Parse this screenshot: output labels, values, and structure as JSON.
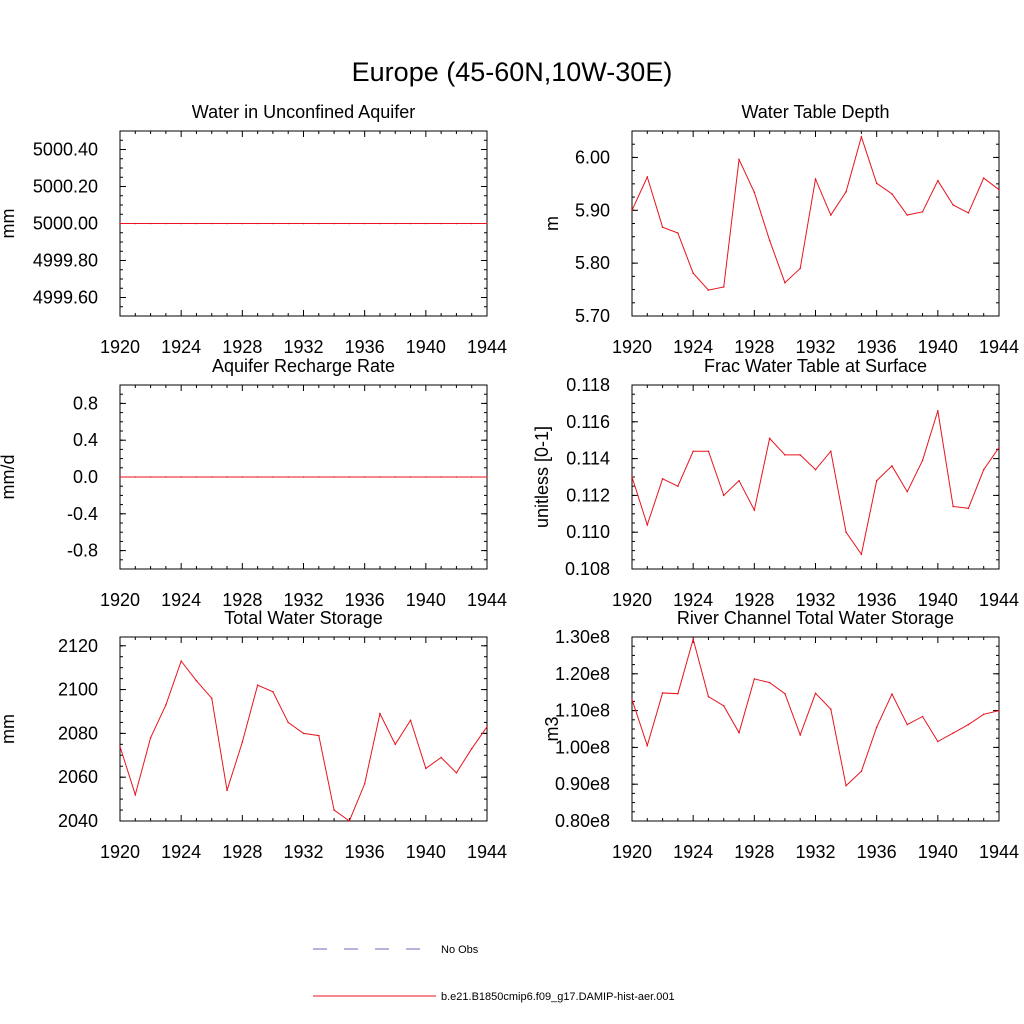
{
  "title": "Europe (45-60N,10W-30E)",
  "legend": {
    "entries": [
      {
        "label": "No Obs",
        "style": "dashed",
        "color": "#6b6bb8"
      },
      {
        "label": "b.e21.B1850cmip6.f09_g17.DAMIP-hist-aer.001",
        "style": "solid",
        "color": "#e8141e"
      }
    ]
  },
  "chart_data": [
    {
      "type": "line",
      "title": "Water in Unconfined Aquifer",
      "xlabel": "",
      "ylabel": "mm",
      "xlim": [
        1920,
        1944
      ],
      "ylim": [
        4999.5,
        5000.5
      ],
      "x_ticks": [
        "1920",
        "1924",
        "1928",
        "1932",
        "1936",
        "1940",
        "1944"
      ],
      "y_ticks": [
        4999.6,
        4999.8,
        5000.0,
        5000.2,
        5000.4
      ],
      "y_tick_labels": [
        "4999.60",
        "4999.80",
        "5000.00",
        "5000.20",
        "5000.40"
      ],
      "series": [
        {
          "color": "#e8141e",
          "x": [
            1920,
            1921,
            1922,
            1923,
            1924,
            1925,
            1926,
            1927,
            1928,
            1929,
            1930,
            1931,
            1932,
            1933,
            1934,
            1935,
            1936,
            1937,
            1938,
            1939,
            1940,
            1941,
            1942,
            1943,
            1944
          ],
          "values": [
            5000,
            5000,
            5000,
            5000,
            5000,
            5000,
            5000,
            5000,
            5000,
            5000,
            5000,
            5000,
            5000,
            5000,
            5000,
            5000,
            5000,
            5000,
            5000,
            5000,
            5000,
            5000,
            5000,
            5000,
            5000
          ]
        }
      ]
    },
    {
      "type": "line",
      "title": "Water Table Depth",
      "xlabel": "",
      "ylabel": "m",
      "xlim": [
        1920,
        1944
      ],
      "ylim": [
        5.7,
        6.05
      ],
      "x_ticks": [
        "1920",
        "1924",
        "1928",
        "1932",
        "1936",
        "1940",
        "1944"
      ],
      "y_ticks": [
        5.7,
        5.8,
        5.9,
        6.0
      ],
      "y_tick_labels": [
        "5.70",
        "5.80",
        "5.90",
        "6.00"
      ],
      "series": [
        {
          "color": "#e8141e",
          "x": [
            1920,
            1921,
            1922,
            1923,
            1924,
            1925,
            1926,
            1927,
            1928,
            1929,
            1930,
            1931,
            1932,
            1933,
            1934,
            1935,
            1936,
            1937,
            1938,
            1939,
            1940,
            1941,
            1942,
            1943,
            1944
          ],
          "values": [
            5.9,
            5.963,
            5.868,
            5.857,
            5.781,
            5.749,
            5.755,
            5.996,
            5.934,
            5.843,
            5.763,
            5.79,
            5.959,
            5.891,
            5.935,
            6.039,
            5.951,
            5.931,
            5.891,
            5.897,
            5.956,
            5.91,
            5.895,
            5.961,
            5.939
          ]
        }
      ]
    },
    {
      "type": "line",
      "title": "Aquifer Recharge Rate",
      "xlabel": "",
      "ylabel": "mm/d",
      "xlim": [
        1920,
        1944
      ],
      "ylim": [
        -1.0,
        1.0
      ],
      "x_ticks": [
        "1920",
        "1924",
        "1928",
        "1932",
        "1936",
        "1940",
        "1944"
      ],
      "y_ticks": [
        -0.8,
        -0.4,
        0.0,
        0.4,
        0.8
      ],
      "y_tick_labels": [
        "-0.8",
        "-0.4",
        "0.0",
        "0.4",
        "0.8"
      ],
      "series": [
        {
          "color": "#e8141e",
          "x": [
            1920,
            1921,
            1922,
            1923,
            1924,
            1925,
            1926,
            1927,
            1928,
            1929,
            1930,
            1931,
            1932,
            1933,
            1934,
            1935,
            1936,
            1937,
            1938,
            1939,
            1940,
            1941,
            1942,
            1943,
            1944
          ],
          "values": [
            0,
            0,
            0,
            0,
            0,
            0,
            0,
            0,
            0,
            0,
            0,
            0,
            0,
            0,
            0,
            0,
            0,
            0,
            0,
            0,
            0,
            0,
            0,
            0,
            0
          ]
        }
      ]
    },
    {
      "type": "line",
      "title": "Frac Water Table at Surface",
      "xlabel": "",
      "ylabel": "unitless [0-1]",
      "xlim": [
        1920,
        1944
      ],
      "ylim": [
        0.108,
        0.118
      ],
      "x_ticks": [
        "1920",
        "1924",
        "1928",
        "1932",
        "1936",
        "1940",
        "1944"
      ],
      "y_ticks": [
        0.108,
        0.11,
        0.112,
        0.114,
        0.116,
        0.118
      ],
      "y_tick_labels": [
        "0.108",
        "0.110",
        "0.112",
        "0.114",
        "0.116",
        "0.118"
      ],
      "series": [
        {
          "color": "#e8141e",
          "x": [
            1920,
            1921,
            1922,
            1923,
            1924,
            1925,
            1926,
            1927,
            1928,
            1929,
            1930,
            1931,
            1932,
            1933,
            1934,
            1935,
            1936,
            1937,
            1938,
            1939,
            1940,
            1941,
            1942,
            1943,
            1944
          ],
          "values": [
            0.113,
            0.1104,
            0.1129,
            0.1125,
            0.1144,
            0.1144,
            0.112,
            0.1128,
            0.1112,
            0.1151,
            0.1142,
            0.1142,
            0.1134,
            0.1144,
            0.11,
            0.1088,
            0.1128,
            0.1136,
            0.1122,
            0.1139,
            0.1166,
            0.1114,
            0.1113,
            0.1134,
            0.1146
          ]
        }
      ]
    },
    {
      "type": "line",
      "title": "Total Water Storage",
      "xlabel": "",
      "ylabel": "mm",
      "xlim": [
        1920,
        1944
      ],
      "ylim": [
        2040,
        2124
      ],
      "x_ticks": [
        "1920",
        "1924",
        "1928",
        "1932",
        "1936",
        "1940",
        "1944"
      ],
      "y_ticks": [
        2040,
        2060,
        2080,
        2100,
        2120
      ],
      "y_tick_labels": [
        "2040",
        "2060",
        "2080",
        "2100",
        "2120"
      ],
      "series": [
        {
          "color": "#e8141e",
          "x": [
            1920,
            1921,
            1922,
            1923,
            1924,
            1925,
            1926,
            1927,
            1928,
            1929,
            1930,
            1931,
            1932,
            1933,
            1934,
            1935,
            1936,
            1937,
            1938,
            1939,
            1940,
            1941,
            1942,
            1943,
            1944
          ],
          "values": [
            2074,
            2052,
            2078,
            2093,
            2113,
            2104,
            2096,
            2054,
            2076,
            2102,
            2099,
            2085,
            2080,
            2079,
            2045,
            2040,
            2057,
            2089,
            2075,
            2086,
            2064,
            2069,
            2062,
            2073,
            2083
          ]
        }
      ]
    },
    {
      "type": "line",
      "title": "River Channel Total Water Storage",
      "xlabel": "",
      "ylabel": "m3",
      "xlim": [
        1920,
        1944
      ],
      "ylim": [
        80000000.0,
        130000000.0
      ],
      "x_ticks": [
        "1920",
        "1924",
        "1928",
        "1932",
        "1936",
        "1940",
        "1944"
      ],
      "y_ticks": [
        80000000.0,
        90000000.0,
        100000000.0,
        110000000.0,
        120000000.0,
        130000000.0
      ],
      "y_tick_labels": [
        "0.80e8",
        "0.90e8",
        "1.00e8",
        "1.10e8",
        "1.20e8",
        "1.30e8"
      ],
      "series": [
        {
          "color": "#e8141e",
          "x": [
            1920,
            1921,
            1922,
            1923,
            1924,
            1925,
            1926,
            1927,
            1928,
            1929,
            1930,
            1931,
            1932,
            1933,
            1934,
            1935,
            1936,
            1937,
            1938,
            1939,
            1940,
            1941,
            1942,
            1943,
            1944
          ],
          "values": [
            113000000.0,
            100500000.0,
            114800000.0,
            114600000.0,
            129400000.0,
            113800000.0,
            111300000.0,
            104000000.0,
            118600000.0,
            117600000.0,
            114600000.0,
            103400000.0,
            114700000.0,
            110400000.0,
            89600000.0,
            93500000.0,
            105500000.0,
            114500000.0,
            106200000.0,
            108400000.0,
            101600000.0,
            103900000.0,
            106200000.0,
            109000000.0,
            110000000.0
          ]
        }
      ]
    }
  ]
}
